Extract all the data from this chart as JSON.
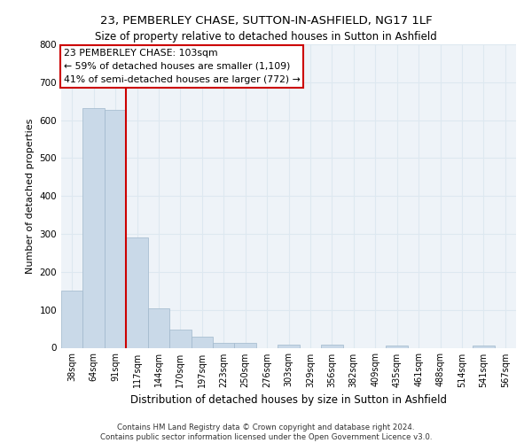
{
  "title_line1": "23, PEMBERLEY CHASE, SUTTON-IN-ASHFIELD, NG17 1LF",
  "title_line2": "Size of property relative to detached houses in Sutton in Ashfield",
  "xlabel": "Distribution of detached houses by size in Sutton in Ashfield",
  "ylabel": "Number of detached properties",
  "footnote": "Contains HM Land Registry data © Crown copyright and database right 2024.\nContains public sector information licensed under the Open Government Licence v3.0.",
  "bar_labels": [
    "38sqm",
    "64sqm",
    "91sqm",
    "117sqm",
    "144sqm",
    "170sqm",
    "197sqm",
    "223sqm",
    "250sqm",
    "276sqm",
    "303sqm",
    "329sqm",
    "356sqm",
    "382sqm",
    "409sqm",
    "435sqm",
    "461sqm",
    "488sqm",
    "514sqm",
    "541sqm",
    "567sqm"
  ],
  "bar_values": [
    150,
    632,
    628,
    290,
    104,
    48,
    30,
    12,
    12,
    0,
    8,
    0,
    8,
    0,
    0,
    5,
    0,
    0,
    0,
    5,
    0
  ],
  "bar_color": "#c9d9e8",
  "bar_edge_color": "#a0b8cc",
  "grid_color": "#dde8f0",
  "background_color": "#eef3f8",
  "vline_x": 2.5,
  "vline_color": "#cc0000",
  "annotation_text": "23 PEMBERLEY CHASE: 103sqm\n← 59% of detached houses are smaller (1,109)\n41% of semi-detached houses are larger (772) →",
  "annotation_box_color": "#ffffff",
  "annotation_box_edge": "#cc0000",
  "ylim": [
    0,
    800
  ],
  "yticks": [
    0,
    100,
    200,
    300,
    400,
    500,
    600,
    700,
    800
  ],
  "title_fontsize": 9.5,
  "subtitle_fontsize": 8.5
}
